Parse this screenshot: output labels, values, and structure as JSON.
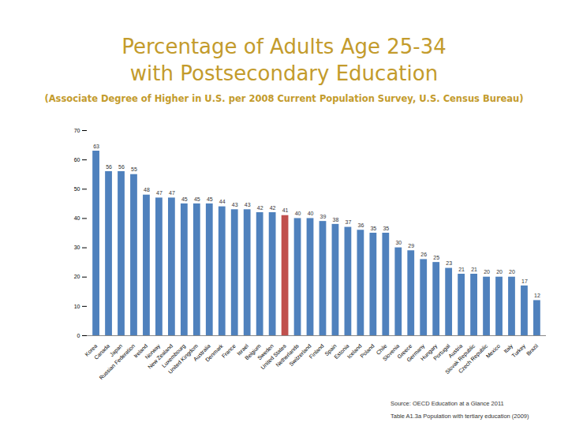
{
  "chart_data": {
    "type": "bar",
    "title": "Percentage of Adults Age 25-34 with Postsecondary Education",
    "subtitle": "(Associate Degree of Higher in U.S. per 2008 Current Population Survey, U.S. Census Bureau)",
    "annotations": [
      "Source: OECD Education at a Glance 2011",
      "Table A1.3a Population with tertiary education (2009)"
    ],
    "categories": [
      "Korea",
      "Canada",
      "Japan",
      "Russian Federation",
      "Ireland",
      "Norway",
      "New Zealand",
      "Luxembourg",
      "United Kingdom",
      "Australia",
      "Denmark",
      "France",
      "Israel",
      "Belgium",
      "Sweden",
      "United States",
      "Netherlands",
      "Switzerland",
      "Finland",
      "Spain",
      "Estonia",
      "Iceland",
      "Poland",
      "Chile",
      "Slovenia",
      "Greece",
      "Germany",
      "Hungary",
      "Portugal",
      "Austria",
      "Slovak Republic",
      "Czech Republic",
      "Mexico",
      "Italy",
      "Turkey",
      "Brazil"
    ],
    "values": [
      63,
      56,
      56,
      55,
      48,
      47,
      47,
      45,
      45,
      45,
      44,
      43,
      43,
      42,
      42,
      41,
      40,
      40,
      39,
      38,
      37,
      36,
      35,
      35,
      30,
      29,
      26,
      25,
      23,
      21,
      21,
      20,
      20,
      20,
      17,
      12
    ],
    "colors": [
      "#4f81bd",
      "#4f81bd",
      "#4f81bd",
      "#4f81bd",
      "#4f81bd",
      "#4f81bd",
      "#4f81bd",
      "#4f81bd",
      "#4f81bd",
      "#4f81bd",
      "#4f81bd",
      "#4f81bd",
      "#4f81bd",
      "#4f81bd",
      "#4f81bd",
      "#c0504d",
      "#4f81bd",
      "#4f81bd",
      "#4f81bd",
      "#4f81bd",
      "#4f81bd",
      "#4f81bd",
      "#4f81bd",
      "#4f81bd",
      "#4f81bd",
      "#4f81bd",
      "#4f81bd",
      "#4f81bd",
      "#4f81bd",
      "#4f81bd",
      "#4f81bd",
      "#4f81bd",
      "#4f81bd",
      "#4f81bd",
      "#4f81bd",
      "#4f81bd"
    ],
    "ylim": [
      0,
      70
    ],
    "yticks": [
      0,
      10,
      20,
      30,
      40,
      50,
      60,
      70
    ],
    "grid": false,
    "data_labels": true
  }
}
